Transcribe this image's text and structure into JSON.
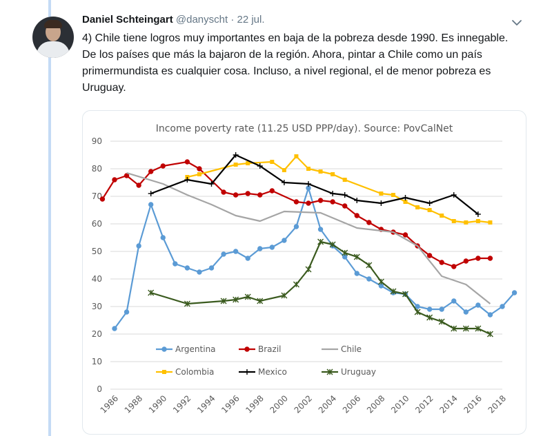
{
  "tweet": {
    "author_name": "Daniel Schteingart",
    "handle": "@danyscht",
    "separator": "·",
    "date": "22 jul.",
    "text": "4) Chile tiene logros muy importantes en baja de la pobreza desde 1990. Es innegable. De los países que más la bajaron de la región. Ahora, pintar a Chile como un país primermundista es cualquier cosa. Incluso, a nivel regional, el de menor pobreza es Uruguay."
  },
  "icons": {
    "avatar": "author-avatar",
    "menu": "chevron-down-icon"
  },
  "colors": {
    "thread_line": "#c4dbf5",
    "Argentina": "#5b9bd5",
    "Brazil": "#c00000",
    "Chile": "#a5a5a5",
    "Colombia": "#ffc000",
    "Mexico": "#000000",
    "Uruguay": "#3a5a1e"
  },
  "chart_data": {
    "type": "line",
    "title": "Income poverty rate (11.25 USD PPP/day). Source: PovCalNet",
    "xlim": [
      1986,
      2018
    ],
    "ylim": [
      0,
      90
    ],
    "x_ticks": [
      1986,
      1988,
      1990,
      1992,
      1994,
      1996,
      1998,
      2000,
      2002,
      2004,
      2006,
      2008,
      2010,
      2012,
      2014,
      2016,
      2018
    ],
    "y_ticks": [
      0,
      10,
      20,
      30,
      40,
      50,
      60,
      70,
      80,
      90
    ],
    "grid": true,
    "legend_position": "bottom-inside",
    "series": [
      {
        "name": "Argentina",
        "marker": "circle",
        "points": [
          [
            1986,
            22
          ],
          [
            1987,
            28
          ],
          [
            1988,
            52
          ],
          [
            1989,
            67
          ],
          [
            1990,
            55
          ],
          [
            1991,
            45.5
          ],
          [
            1992,
            44
          ],
          [
            1993,
            42.5
          ],
          [
            1994,
            44
          ],
          [
            1995,
            49
          ],
          [
            1996,
            50
          ],
          [
            1997,
            47.5
          ],
          [
            1998,
            51
          ],
          [
            1999,
            51.5
          ],
          [
            2000,
            54
          ],
          [
            2001,
            59
          ],
          [
            2002,
            73
          ],
          [
            2003,
            58
          ],
          [
            2004,
            52
          ],
          [
            2005,
            48
          ],
          [
            2006,
            42
          ],
          [
            2007,
            40
          ],
          [
            2008,
            37.5
          ],
          [
            2009,
            35
          ],
          [
            2010,
            34.5
          ],
          [
            2011,
            30
          ],
          [
            2012,
            29
          ],
          [
            2013,
            29
          ],
          [
            2014,
            32
          ],
          [
            2015,
            28
          ],
          [
            2016,
            30.5
          ],
          [
            2017,
            27
          ],
          [
            2018,
            30
          ],
          [
            2019,
            35
          ]
        ]
      },
      {
        "name": "Brazil",
        "marker": "circle",
        "points": [
          [
            1985,
            69
          ],
          [
            1986,
            76
          ],
          [
            1987,
            77.5
          ],
          [
            1988,
            74
          ],
          [
            1989,
            79
          ],
          [
            1990,
            81
          ],
          [
            1992,
            82.5
          ],
          [
            1993,
            80
          ],
          [
            1995,
            71.5
          ],
          [
            1996,
            70.5
          ],
          [
            1997,
            71
          ],
          [
            1998,
            70.5
          ],
          [
            1999,
            72
          ],
          [
            2001,
            68
          ],
          [
            2002,
            67.5
          ],
          [
            2003,
            68.5
          ],
          [
            2004,
            68
          ],
          [
            2005,
            66.5
          ],
          [
            2006,
            63
          ],
          [
            2007,
            60.5
          ],
          [
            2008,
            58
          ],
          [
            2009,
            57
          ],
          [
            2010,
            56
          ],
          [
            2011,
            52
          ],
          [
            2012,
            48.5
          ],
          [
            2013,
            46
          ],
          [
            2014,
            44.5
          ],
          [
            2015,
            46.5
          ],
          [
            2016,
            47.5
          ],
          [
            2017,
            47.5
          ]
        ]
      },
      {
        "name": "Chile",
        "marker": "none",
        "points": [
          [
            1987,
            78.5
          ],
          [
            1990,
            74.5
          ],
          [
            1992,
            70.5
          ],
          [
            1994,
            67
          ],
          [
            1996,
            63
          ],
          [
            1998,
            61
          ],
          [
            2000,
            64.5
          ],
          [
            2003,
            64
          ],
          [
            2006,
            58.5
          ],
          [
            2009,
            57
          ],
          [
            2011,
            52
          ],
          [
            2013,
            41
          ],
          [
            2015,
            38
          ],
          [
            2017,
            31
          ]
        ]
      },
      {
        "name": "Colombia",
        "marker": "square",
        "points": [
          [
            1992,
            77
          ],
          [
            1993,
            78
          ],
          [
            1996,
            81.5
          ],
          [
            1997,
            82
          ],
          [
            1999,
            82.5
          ],
          [
            2000,
            79.5
          ],
          [
            2001,
            84.5
          ],
          [
            2002,
            80
          ],
          [
            2003,
            79
          ],
          [
            2004,
            78
          ],
          [
            2005,
            76
          ],
          [
            2008,
            71
          ],
          [
            2009,
            70.5
          ],
          [
            2010,
            68
          ],
          [
            2011,
            66
          ],
          [
            2012,
            65
          ],
          [
            2013,
            63
          ],
          [
            2014,
            61
          ],
          [
            2015,
            60.5
          ],
          [
            2016,
            61
          ],
          [
            2017,
            60.5
          ]
        ]
      },
      {
        "name": "Mexico",
        "marker": "plus",
        "points": [
          [
            1989,
            71
          ],
          [
            1992,
            76
          ],
          [
            1994,
            74.5
          ],
          [
            1996,
            85
          ],
          [
            1998,
            81
          ],
          [
            2000,
            75
          ],
          [
            2002,
            74.5
          ],
          [
            2004,
            71
          ],
          [
            2005,
            70.5
          ],
          [
            2006,
            68.5
          ],
          [
            2008,
            67.5
          ],
          [
            2010,
            69.5
          ],
          [
            2012,
            67.5
          ],
          [
            2014,
            70.5
          ],
          [
            2016,
            63.5
          ]
        ]
      },
      {
        "name": "Uruguay",
        "marker": "star",
        "points": [
          [
            1989,
            35
          ],
          [
            1992,
            31
          ],
          [
            1995,
            32
          ],
          [
            1996,
            32.5
          ],
          [
            1997,
            33.5
          ],
          [
            1998,
            32
          ],
          [
            2000,
            34
          ],
          [
            2001,
            38
          ],
          [
            2002,
            43.5
          ],
          [
            2003,
            53.5
          ],
          [
            2004,
            52.5
          ],
          [
            2005,
            49.5
          ],
          [
            2006,
            48
          ],
          [
            2007,
            45
          ],
          [
            2008,
            39
          ],
          [
            2009,
            35.5
          ],
          [
            2010,
            34.5
          ],
          [
            2011,
            28
          ],
          [
            2012,
            26
          ],
          [
            2013,
            24.5
          ],
          [
            2014,
            22
          ],
          [
            2015,
            22
          ],
          [
            2016,
            22
          ],
          [
            2017,
            20
          ]
        ]
      }
    ]
  }
}
